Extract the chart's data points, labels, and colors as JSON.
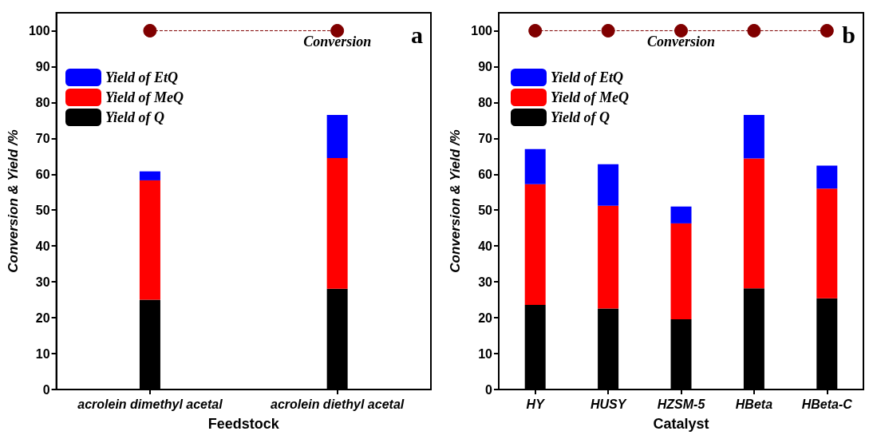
{
  "chart_data": [
    {
      "type": "bar",
      "xlabel": "Feedstock",
      "ylabel": "Conversion & Yield /%",
      "annotations": [
        "a"
      ],
      "categories": [
        "acrolein dimethyl acetal",
        "acrolein diethyl acetal"
      ],
      "stacked": true,
      "ylim": [
        0,
        105
      ],
      "yticks": [
        0,
        10,
        20,
        30,
        40,
        50,
        60,
        70,
        80,
        90,
        100
      ],
      "grid": false,
      "legend": "top left",
      "series": [
        {
          "name": "Yield of Q",
          "color": "#000000",
          "values": [
            25.0,
            28.1
          ]
        },
        {
          "name": "Yield of MeQ",
          "color": "#ff0000",
          "values": [
            33.3,
            36.4
          ]
        },
        {
          "name": "Yield of EtQ",
          "color": "#0000ff",
          "values": [
            2.5,
            12.0
          ]
        },
        {
          "name": "Conversion",
          "type": "line",
          "color": "#800000",
          "marker": "circle",
          "line_style": "dashed",
          "values": [
            100,
            100
          ]
        }
      ]
    },
    {
      "type": "bar",
      "xlabel": "Catalyst",
      "ylabel": "Conversion & Yield /%",
      "annotations": [
        "b"
      ],
      "categories": [
        "HY",
        "HUSY",
        "HZSM-5",
        "HBeta",
        "HBeta-C"
      ],
      "stacked": true,
      "ylim": [
        0,
        105
      ],
      "yticks": [
        0,
        10,
        20,
        30,
        40,
        50,
        60,
        70,
        80,
        90,
        100
      ],
      "grid": false,
      "legend": "top left",
      "series": [
        {
          "name": "Yield of Q",
          "color": "#000000",
          "values": [
            23.6,
            22.6,
            19.6,
            28.2,
            25.4
          ]
        },
        {
          "name": "Yield of MeQ",
          "color": "#ff0000",
          "values": [
            33.6,
            28.6,
            26.7,
            36.2,
            30.6
          ]
        },
        {
          "name": "Yield of EtQ",
          "color": "#0000ff",
          "values": [
            9.8,
            11.6,
            4.7,
            12.1,
            6.4
          ]
        },
        {
          "name": "Conversion",
          "type": "line",
          "color": "#800000",
          "marker": "circle",
          "line_style": "dashed",
          "values": [
            100,
            100,
            100,
            100,
            100
          ]
        }
      ]
    }
  ]
}
